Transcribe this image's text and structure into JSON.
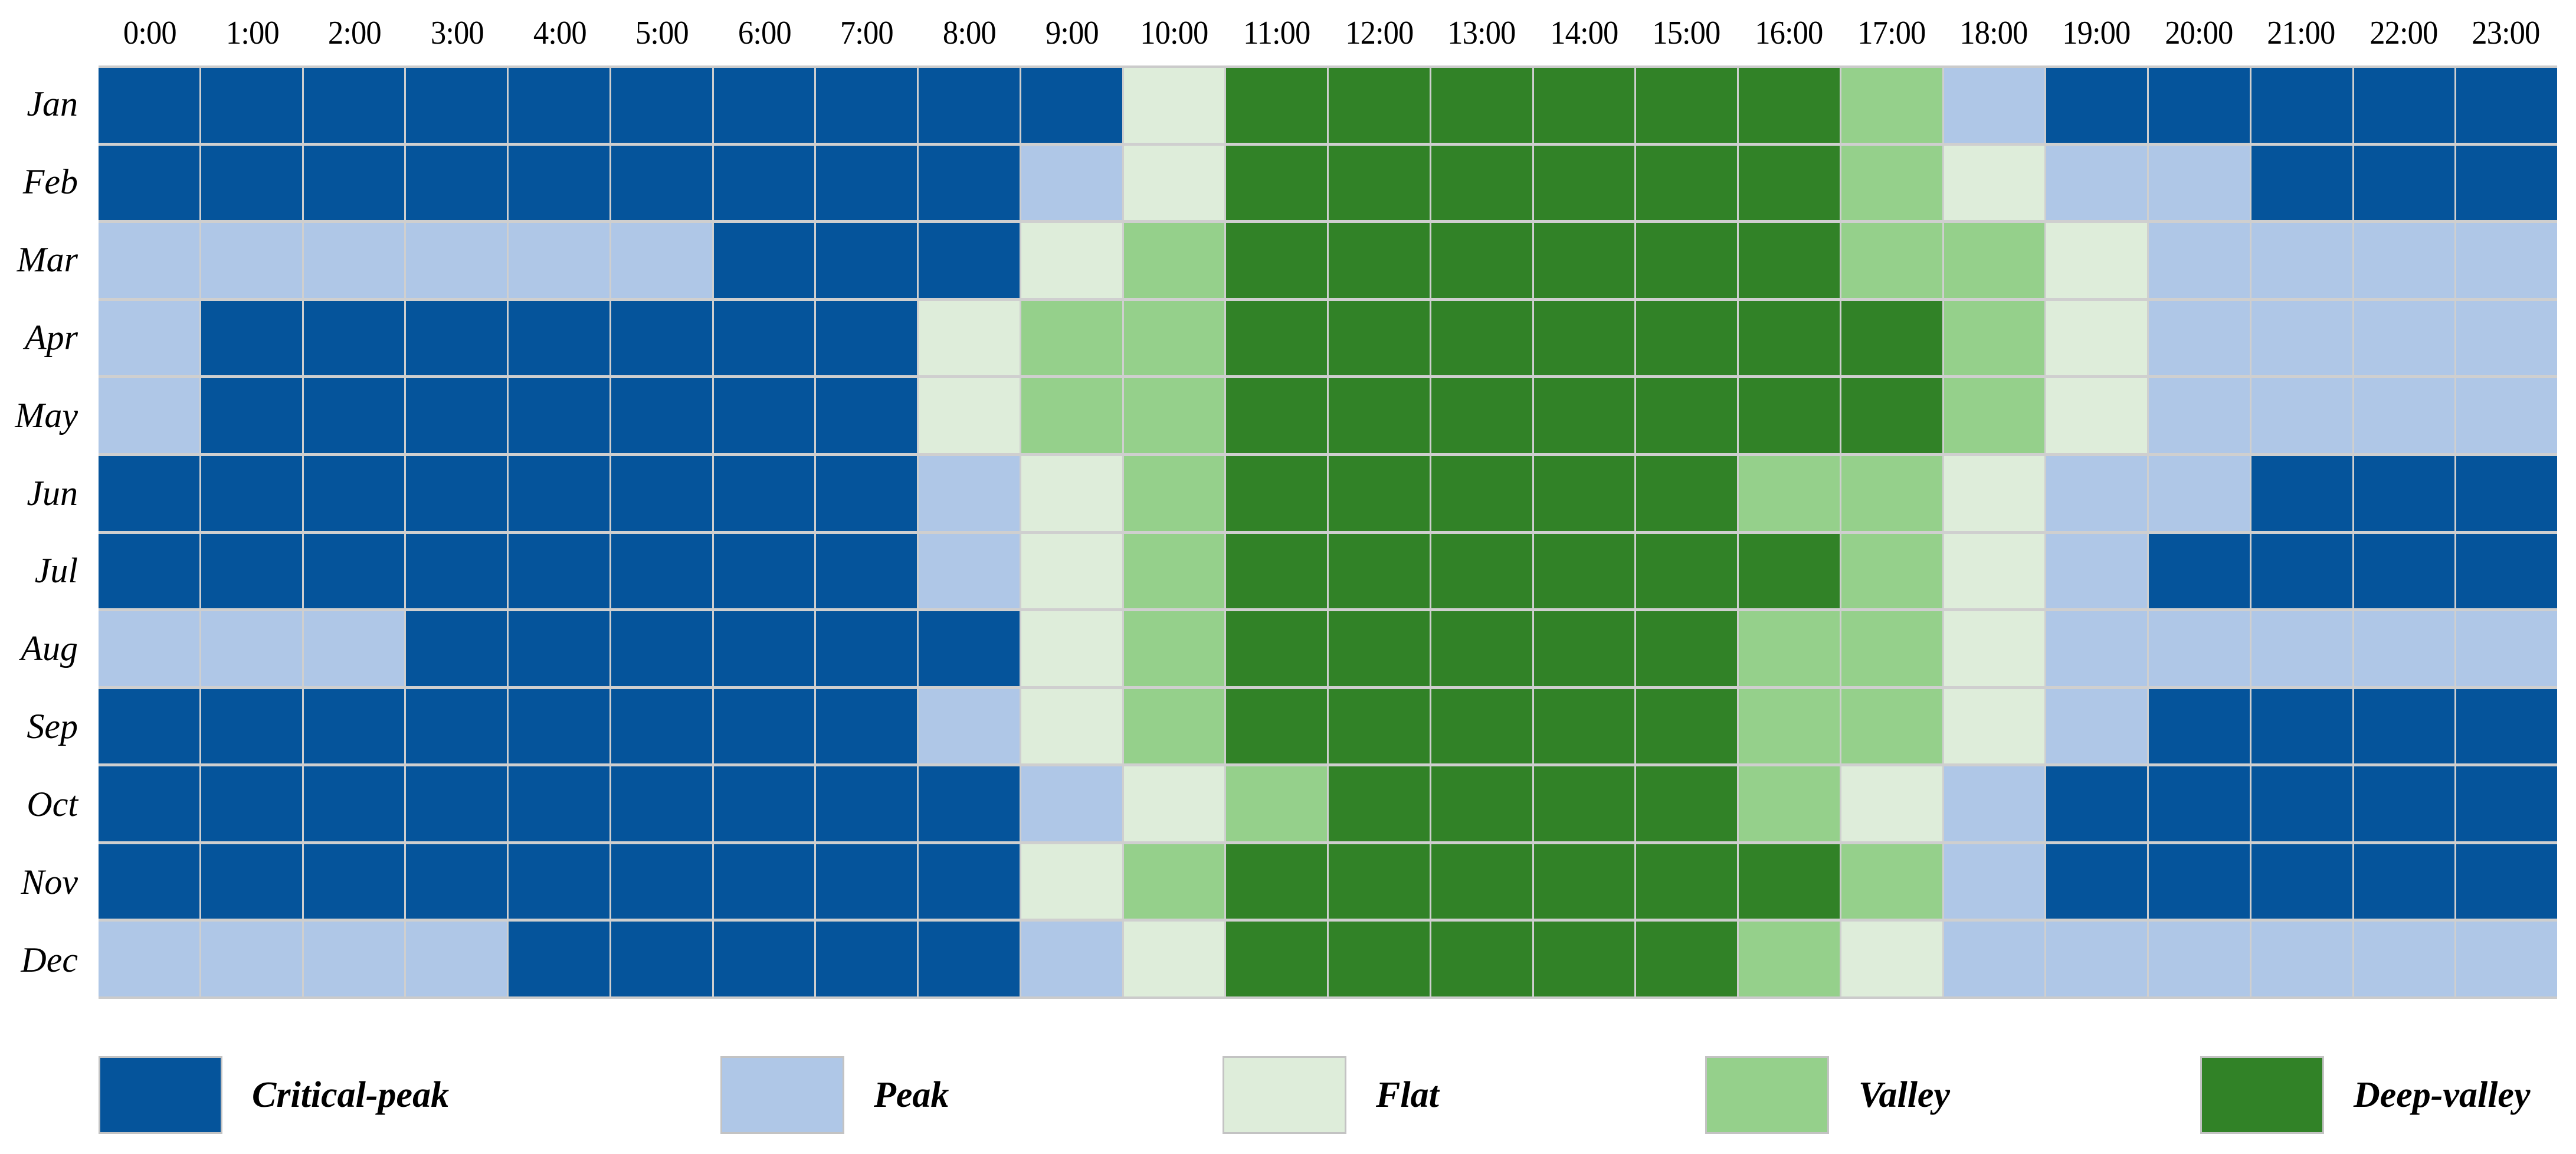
{
  "figure": {
    "kind": "time-of-use-period-heatmap"
  },
  "x_axis": {
    "labels": [
      "0:00",
      "1:00",
      "2:00",
      "3:00",
      "4:00",
      "5:00",
      "6:00",
      "7:00",
      "8:00",
      "9:00",
      "10:00",
      "11:00",
      "12:00",
      "13:00",
      "14:00",
      "15:00",
      "16:00",
      "17:00",
      "18:00",
      "19:00",
      "20:00",
      "21:00",
      "22:00",
      "23:00"
    ]
  },
  "y_axis": {
    "labels": [
      "Jan",
      "Feb",
      "Mar",
      "Apr",
      "May",
      "Jun",
      "Jul",
      "Aug",
      "Sep",
      "Oct",
      "Nov",
      "Dec"
    ]
  },
  "legend": {
    "items": [
      {
        "key": "critical-peak",
        "label": "Critical-peak"
      },
      {
        "key": "peak",
        "label": "Peak"
      },
      {
        "key": "flat",
        "label": "Flat"
      },
      {
        "key": "valley",
        "label": "Valley"
      },
      {
        "key": "deep-valley",
        "label": "Deep-valley"
      }
    ]
  },
  "colors": {
    "critical-peak": "#05549B",
    "peak": "#AFC7E7",
    "flat": "#DEEDDA",
    "valley": "#95D08B",
    "deep-valley": "#318227",
    "grid_line": "#CFCFCF"
  },
  "chart_data": {
    "type": "heatmap",
    "title": "",
    "x": [
      "0:00",
      "1:00",
      "2:00",
      "3:00",
      "4:00",
      "5:00",
      "6:00",
      "7:00",
      "8:00",
      "9:00",
      "10:00",
      "11:00",
      "12:00",
      "13:00",
      "14:00",
      "15:00",
      "16:00",
      "17:00",
      "18:00",
      "19:00",
      "20:00",
      "21:00",
      "22:00",
      "23:00"
    ],
    "y": [
      "Jan",
      "Feb",
      "Mar",
      "Apr",
      "May",
      "Jun",
      "Jul",
      "Aug",
      "Sep",
      "Oct",
      "Nov",
      "Dec"
    ],
    "code_map": {
      "C": "critical-peak",
      "P": "peak",
      "F": "flat",
      "V": "valley",
      "D": "deep-valley"
    },
    "values": [
      [
        "C",
        "C",
        "C",
        "C",
        "C",
        "C",
        "C",
        "C",
        "C",
        "C",
        "F",
        "D",
        "D",
        "D",
        "D",
        "D",
        "D",
        "V",
        "P",
        "C",
        "C",
        "C",
        "C",
        "C"
      ],
      [
        "C",
        "C",
        "C",
        "C",
        "C",
        "C",
        "C",
        "C",
        "C",
        "P",
        "F",
        "D",
        "D",
        "D",
        "D",
        "D",
        "D",
        "V",
        "F",
        "P",
        "P",
        "C",
        "C",
        "C"
      ],
      [
        "P",
        "P",
        "P",
        "P",
        "P",
        "P",
        "C",
        "C",
        "C",
        "F",
        "V",
        "D",
        "D",
        "D",
        "D",
        "D",
        "D",
        "V",
        "V",
        "F",
        "P",
        "P",
        "P",
        "P"
      ],
      [
        "P",
        "C",
        "C",
        "C",
        "C",
        "C",
        "C",
        "C",
        "F",
        "V",
        "V",
        "D",
        "D",
        "D",
        "D",
        "D",
        "D",
        "D",
        "V",
        "F",
        "P",
        "P",
        "P",
        "P"
      ],
      [
        "P",
        "C",
        "C",
        "C",
        "C",
        "C",
        "C",
        "C",
        "F",
        "V",
        "V",
        "D",
        "D",
        "D",
        "D",
        "D",
        "D",
        "D",
        "V",
        "F",
        "P",
        "P",
        "P",
        "P"
      ],
      [
        "C",
        "C",
        "C",
        "C",
        "C",
        "C",
        "C",
        "C",
        "P",
        "F",
        "V",
        "D",
        "D",
        "D",
        "D",
        "D",
        "V",
        "V",
        "F",
        "P",
        "P",
        "C",
        "C",
        "C"
      ],
      [
        "C",
        "C",
        "C",
        "C",
        "C",
        "C",
        "C",
        "C",
        "P",
        "F",
        "V",
        "D",
        "D",
        "D",
        "D",
        "D",
        "D",
        "V",
        "F",
        "P",
        "C",
        "C",
        "C",
        "C"
      ],
      [
        "P",
        "P",
        "P",
        "C",
        "C",
        "C",
        "C",
        "C",
        "C",
        "F",
        "V",
        "D",
        "D",
        "D",
        "D",
        "D",
        "V",
        "V",
        "F",
        "P",
        "P",
        "P",
        "P",
        "P"
      ],
      [
        "C",
        "C",
        "C",
        "C",
        "C",
        "C",
        "C",
        "C",
        "P",
        "F",
        "V",
        "D",
        "D",
        "D",
        "D",
        "D",
        "V",
        "V",
        "F",
        "P",
        "C",
        "C",
        "C",
        "C"
      ],
      [
        "C",
        "C",
        "C",
        "C",
        "C",
        "C",
        "C",
        "C",
        "C",
        "P",
        "F",
        "V",
        "D",
        "D",
        "D",
        "D",
        "V",
        "F",
        "P",
        "C",
        "C",
        "C",
        "C",
        "C"
      ],
      [
        "C",
        "C",
        "C",
        "C",
        "C",
        "C",
        "C",
        "C",
        "C",
        "F",
        "V",
        "D",
        "D",
        "D",
        "D",
        "D",
        "D",
        "V",
        "P",
        "C",
        "C",
        "C",
        "C",
        "C"
      ],
      [
        "P",
        "P",
        "P",
        "P",
        "C",
        "C",
        "C",
        "C",
        "C",
        "P",
        "F",
        "D",
        "D",
        "D",
        "D",
        "D",
        "V",
        "F",
        "P",
        "P",
        "P",
        "P",
        "P",
        "P"
      ]
    ],
    "legend_position": "bottom",
    "grid": true
  }
}
